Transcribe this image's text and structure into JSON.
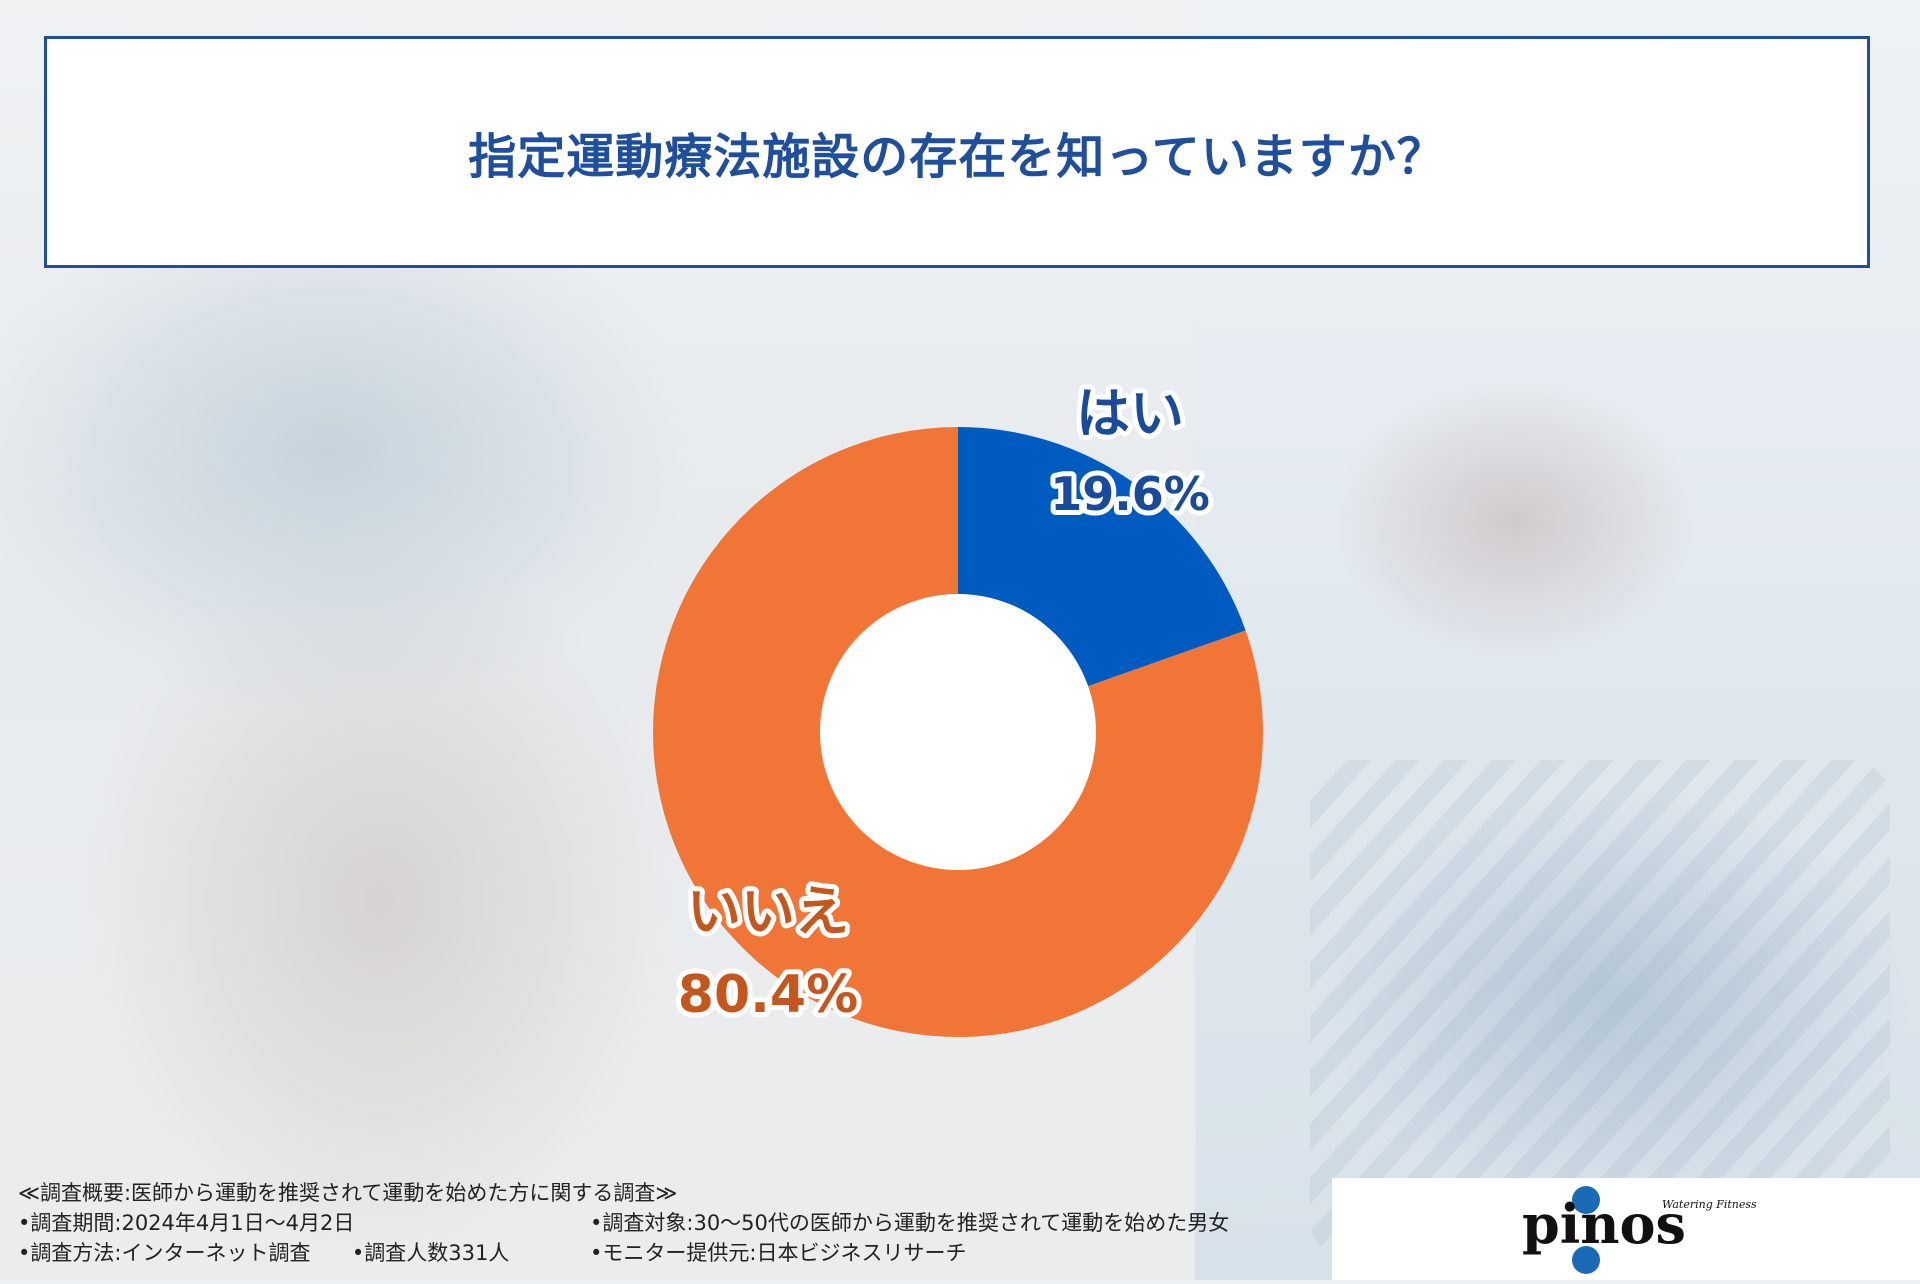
{
  "title": "指定運動療法施設の存在を知っていますか？",
  "chart_data": {
    "type": "pie",
    "donut": true,
    "title": "指定運動療法施設の存在を知っていますか？",
    "slices": [
      {
        "label": "はい",
        "value": 19.6,
        "display": "19.6%",
        "color": "#005bc0",
        "label_color": "#1a4b9b"
      },
      {
        "label": "いいえ",
        "value": 80.4,
        "display": "80.4%",
        "color": "#f07537",
        "label_color": "#c4571e"
      }
    ]
  },
  "footer": {
    "heading": "≪調査概要:医師から運動を推奨されて運動を始めた方に関する調査≫",
    "period": "•調査期間:2024年4月1日〜4月2日",
    "target": "•調査対象:30〜50代の医師から運動を推奨されて運動を始めた男女",
    "method": "•調査方法:インターネット調査",
    "count": "•調査人数331人",
    "monitor": "•モニター提供元:日本ビジネスリサーチ"
  },
  "logo": {
    "wordmark": "pinos",
    "tagline": "Watering Fitness",
    "color": "#1a6ab8"
  }
}
